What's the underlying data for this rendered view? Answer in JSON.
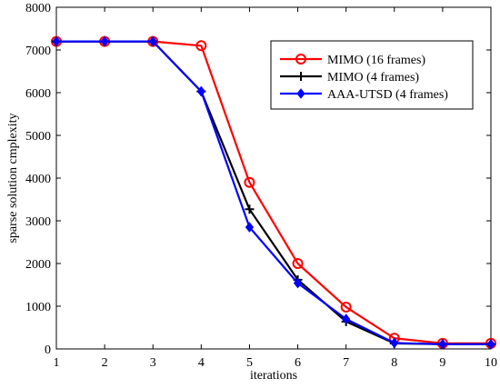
{
  "chart_data": {
    "type": "line",
    "x": [
      1,
      2,
      3,
      4,
      5,
      6,
      7,
      8,
      9,
      10
    ],
    "xlabel": "iterations",
    "ylabel": "sparse solution cmplexity",
    "xlim": [
      1,
      10
    ],
    "ylim": [
      0,
      8000
    ],
    "xticks": [
      "1",
      "2",
      "3",
      "4",
      "5",
      "6",
      "7",
      "8",
      "9",
      "10"
    ],
    "yticks": [
      "0",
      "1000",
      "2000",
      "3000",
      "4000",
      "5000",
      "6000",
      "7000",
      "8000"
    ],
    "grid": false,
    "legend_position": "top-right",
    "series": [
      {
        "name": "MIMO (16 frames)",
        "color": "#ff0000",
        "marker": "circle",
        "values": [
          7200,
          7200,
          7200,
          7100,
          3900,
          2000,
          980,
          250,
          130,
          130
        ]
      },
      {
        "name": "MIMO (4 frames)",
        "color": "#000000",
        "marker": "plus",
        "values": [
          7200,
          7200,
          7200,
          6030,
          3270,
          1620,
          640,
          130,
          110,
          110
        ]
      },
      {
        "name": "AAA-UTSD (4 frames)",
        "color": "#0000ff",
        "marker": "diamond",
        "values": [
          7200,
          7200,
          7200,
          6030,
          2850,
          1540,
          700,
          140,
          110,
          110
        ]
      }
    ]
  }
}
